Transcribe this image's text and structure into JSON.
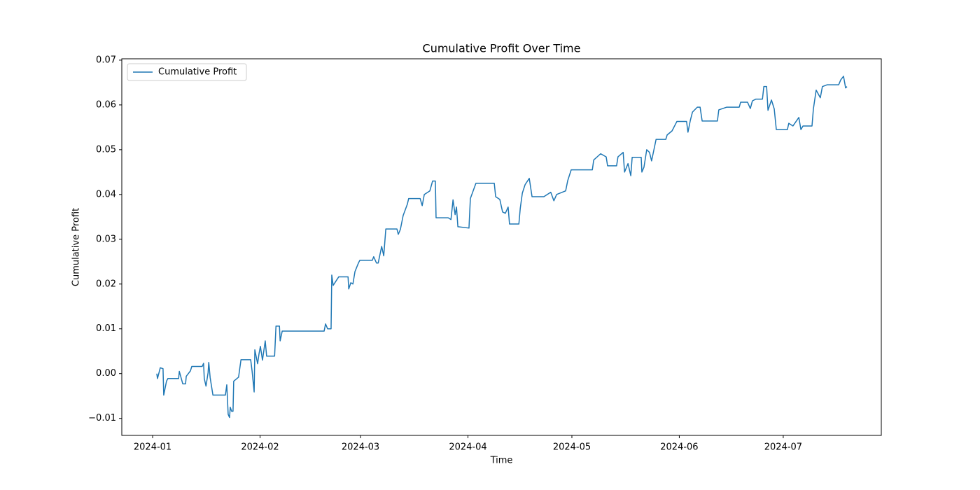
{
  "chart_data": {
    "type": "line",
    "title": "Cumulative Profit Over Time",
    "xlabel": "Time",
    "ylabel": "Cumulative Profit",
    "x": [
      1.2,
      1.4,
      2.2,
      3.0,
      3.2,
      4.0,
      4.4,
      7.5,
      7.7,
      8.7,
      9.5,
      9.7,
      10.9,
      11.3,
      14.3,
      14.7,
      14.9,
      15.4,
      16.0,
      16.2,
      16.6,
      17.4,
      21.0,
      21.4,
      21.8,
      22.2,
      22.4,
      22.8,
      23.2,
      23.4,
      24.8,
      25.5,
      28.3,
      28.7,
      29.3,
      29.5,
      30.3,
      30.7,
      31.1,
      31.7,
      32.5,
      32.9,
      35.2,
      35.6,
      36.6,
      36.8,
      37.4,
      49.5,
      49.9,
      50.5,
      51.5,
      51.7,
      52.1,
      53.7,
      56.4,
      56.6,
      57.2,
      57.8,
      58.4,
      59.4,
      59.8,
      63.4,
      63.8,
      64.6,
      65.1,
      66.1,
      66.7,
      67.3,
      70.5,
      70.9,
      71.5,
      72.3,
      73.5,
      73.9,
      77.2,
      77.8,
      78.4,
      80.0,
      80.8,
      81.6,
      81.8,
      85.3,
      86.1,
      86.7,
      87.3,
      87.7,
      88.1,
      91.3,
      91.7,
      92.5,
      93.3,
      98.6,
      99.0,
      100.2,
      101.0,
      101.8,
      102.6,
      103.0,
      105.7,
      106.1,
      106.7,
      107.5,
      108.7,
      109.5,
      112.9,
      114.9,
      115.8,
      116.6,
      119.2,
      119.8,
      120.8,
      126.9,
      127.3,
      129.3,
      130.9,
      131.3,
      133.9,
      134.3,
      135.8,
      136.2,
      137.2,
      138.0,
      138.4,
      141.0,
      141.2,
      141.8,
      142.6,
      143.4,
      144.0,
      145.3,
      148.1,
      148.5,
      149.9,
      151.3,
      154.1,
      154.5,
      155.2,
      155.8,
      157.2,
      158.0,
      158.6,
      163.0,
      163.4,
      165.7,
      169.3,
      169.7,
      171.7,
      172.5,
      173.1,
      174.1,
      176.0,
      176.4,
      177.2,
      177.6,
      178.6,
      179.4,
      180.0,
      183.2,
      183.6,
      184.8,
      186.5,
      187.1,
      187.7,
      190.3,
      190.7,
      191.5,
      192.7,
      193.3,
      194.7,
      198.0,
      198.6,
      199.4,
      200.0,
      200.4
    ],
    "series": [
      {
        "name": "Cumulative Profit",
        "color": "#1f77b4",
        "values": [
          0,
          -0.0011,
          0.0013,
          0.0011,
          -0.0048,
          -0.0017,
          -0.0011,
          -0.0011,
          0.0005,
          -0.0023,
          -0.0023,
          -0.0006,
          0.0006,
          0.0016,
          0.0016,
          0.0023,
          -0.0011,
          -0.0028,
          0.0002,
          0.0025,
          -0.0009,
          -0.0048,
          -0.0048,
          -0.0025,
          -0.0091,
          -0.0098,
          -0.0075,
          -0.0084,
          -0.0084,
          -0.0017,
          -0.0008,
          0.0031,
          0.0031,
          0.0006,
          -0.0041,
          0.0053,
          0.0022,
          0.0044,
          0.0061,
          0.003,
          0.0073,
          0.0039,
          0.0039,
          0.0106,
          0.0106,
          0.0073,
          0.0095,
          0.0095,
          0.0111,
          0.01,
          0.01,
          0.022,
          0.0197,
          0.0216,
          0.0216,
          0.0189,
          0.0203,
          0.02,
          0.0228,
          0.0247,
          0.0253,
          0.0253,
          0.0261,
          0.0247,
          0.0247,
          0.0284,
          0.0263,
          0.0323,
          0.0323,
          0.0311,
          0.0322,
          0.0353,
          0.0378,
          0.0391,
          0.0391,
          0.0375,
          0.04,
          0.0408,
          0.043,
          0.043,
          0.0348,
          0.0348,
          0.0344,
          0.0388,
          0.0355,
          0.0372,
          0.0328,
          0.0325,
          0.0391,
          0.0408,
          0.0425,
          0.0425,
          0.0395,
          0.0389,
          0.0361,
          0.0358,
          0.0372,
          0.0334,
          0.0334,
          0.0369,
          0.0403,
          0.0422,
          0.0436,
          0.0395,
          0.0395,
          0.0405,
          0.0386,
          0.04,
          0.0408,
          0.0431,
          0.0455,
          0.0455,
          0.0477,
          0.0491,
          0.0484,
          0.0464,
          0.0464,
          0.0484,
          0.0494,
          0.045,
          0.0469,
          0.0442,
          0.0483,
          0.0483,
          0.045,
          0.0461,
          0.05,
          0.0494,
          0.0475,
          0.0523,
          0.0523,
          0.0533,
          0.0542,
          0.0563,
          0.0563,
          0.0539,
          0.0566,
          0.0584,
          0.0595,
          0.0595,
          0.0564,
          0.0564,
          0.0589,
          0.0595,
          0.0595,
          0.0606,
          0.0606,
          0.0592,
          0.0609,
          0.0613,
          0.0613,
          0.0641,
          0.0641,
          0.0588,
          0.0611,
          0.0591,
          0.0545,
          0.0545,
          0.0559,
          0.0553,
          0.0572,
          0.0545,
          0.0553,
          0.0553,
          0.0591,
          0.0633,
          0.0616,
          0.0641,
          0.0645,
          0.0645,
          0.0656,
          0.0664,
          0.0638,
          0.0641
        ]
      }
    ],
    "xlim": [
      -8.9,
      210.3
    ],
    "xticks": [
      {
        "value": 0,
        "label": "2024-01"
      },
      {
        "value": 31,
        "label": "2024-02"
      },
      {
        "value": 60,
        "label": "2024-03"
      },
      {
        "value": 91,
        "label": "2024-04"
      },
      {
        "value": 121,
        "label": "2024-05"
      },
      {
        "value": 152,
        "label": "2024-06"
      },
      {
        "value": 182,
        "label": "2024-07"
      }
    ],
    "ylim": [
      -0.0138,
      0.0703
    ],
    "yticks": [
      {
        "value": -0.01,
        "label": "−0.01"
      },
      {
        "value": 0,
        "label": "0.00"
      },
      0.01,
      0.02,
      0.03,
      0.04,
      0.05,
      0.06,
      0.07
    ],
    "legend": "upper left",
    "grid": false
  }
}
